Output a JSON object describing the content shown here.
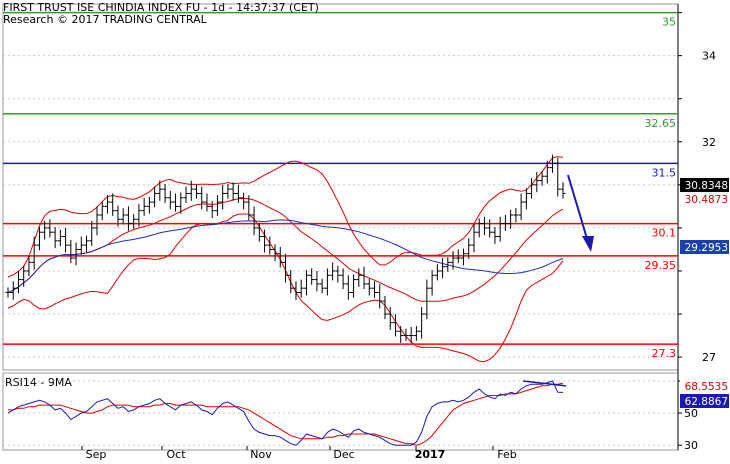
{
  "header": {
    "title": "FIRST TRUST ISE CHINDIA INDEX FU - 1d - 14:37:37 (CET)",
    "subtitle": "Research © 2017 TRADING CENTRAL"
  },
  "colors": {
    "price_bar": "#000000",
    "bollinger": "#e00000",
    "moving_average": "#1f2fb8",
    "resistance_line": "#2e9e2e",
    "support_line": "#ff0000",
    "pivot_line": "#1a1ab0",
    "current_price_tag": "#000000",
    "ma_tag": "#1a3fb0",
    "bollinger_tag": "#e00000",
    "rsi_line": "#1a1ab0",
    "rsi_ma_line": "#e00000",
    "arrow": "#1a1ab0",
    "grid": "#c8c8c8"
  },
  "chart_data": [
    {
      "type": "candlestick",
      "name": "price",
      "x_ticks": [
        "Sep",
        "Oct",
        "Nov",
        "Dec",
        "2017",
        "Feb"
      ],
      "y_ticks": [
        27,
        28,
        29,
        30,
        31,
        32,
        33,
        34,
        35
      ],
      "y_tick_labels_shown": [
        "27",
        "32",
        "34"
      ],
      "ylim": [
        26.7,
        35.2
      ],
      "grid": "dotted horizontal",
      "levels": [
        {
          "value": 35,
          "label": "35",
          "color": "green"
        },
        {
          "value": 32.65,
          "label": "32.65",
          "color": "green"
        },
        {
          "value": 31.5,
          "label": "31.5",
          "color": "blue"
        },
        {
          "value": 30.1,
          "label": "30.1",
          "color": "red"
        },
        {
          "value": 29.35,
          "label": "29.35",
          "color": "red"
        },
        {
          "value": 27.3,
          "label": "27.3",
          "color": "red"
        }
      ],
      "tags": [
        {
          "value": 30.8348,
          "label": "30.8348",
          "kind": "last price"
        },
        {
          "value": 30.4873,
          "label": "30.4873",
          "kind": "bollinger"
        },
        {
          "value": 29.2953,
          "label": "29.2953",
          "kind": "moving average"
        }
      ],
      "close": [
        28.5,
        28.6,
        28.8,
        29.0,
        29.2,
        29.6,
        29.9,
        30.0,
        29.9,
        29.7,
        29.8,
        29.6,
        29.3,
        29.5,
        29.6,
        29.7,
        30.0,
        30.3,
        30.5,
        30.6,
        30.4,
        30.2,
        30.3,
        30.1,
        30.2,
        30.4,
        30.5,
        30.6,
        30.8,
        30.9,
        30.7,
        30.6,
        30.5,
        30.7,
        30.8,
        30.9,
        30.8,
        30.6,
        30.5,
        30.4,
        30.6,
        30.8,
        30.9,
        30.8,
        30.7,
        30.6,
        30.3,
        30.0,
        29.8,
        29.6,
        29.5,
        29.4,
        29.2,
        28.9,
        28.6,
        28.5,
        28.6,
        28.9,
        28.8,
        28.7,
        28.6,
        28.9,
        29.0,
        28.9,
        28.7,
        28.5,
        28.8,
        28.9,
        28.7,
        28.6,
        28.5,
        28.3,
        28.0,
        27.8,
        27.6,
        27.5,
        27.5,
        27.5,
        27.6,
        28.0,
        28.6,
        28.9,
        29.0,
        29.1,
        29.2,
        29.3,
        29.3,
        29.4,
        29.6,
        29.9,
        30.1,
        30.0,
        29.9,
        29.8,
        30.1,
        30.1,
        30.3,
        30.3,
        30.6,
        30.8,
        31.0,
        31.1,
        31.2,
        31.4,
        31.5,
        30.9,
        30.8
      ]
    },
    {
      "type": "line",
      "name": "RSI14 - 9MA",
      "series": [
        {
          "name": "RSI14",
          "tag": "62.8867",
          "values": [
            50,
            52,
            54,
            55,
            56,
            57,
            58,
            57,
            55,
            52,
            53,
            50,
            46,
            48,
            50,
            51,
            54,
            57,
            58,
            59,
            56,
            53,
            54,
            51,
            52,
            54,
            55,
            56,
            58,
            59,
            56,
            54,
            52,
            55,
            56,
            57,
            55,
            52,
            51,
            49,
            53,
            56,
            57,
            55,
            53,
            51,
            45,
            40,
            38,
            37,
            36,
            36,
            35,
            33,
            31,
            30,
            33,
            37,
            36,
            35,
            34,
            38,
            40,
            39,
            37,
            35,
            39,
            40,
            38,
            37,
            36,
            35,
            33,
            31,
            30,
            30,
            30,
            30,
            32,
            38,
            48,
            54,
            56,
            57,
            57,
            58,
            57,
            58,
            60,
            63,
            65,
            62,
            60,
            59,
            62,
            61,
            63,
            62,
            65,
            67,
            68,
            68,
            68,
            69,
            70,
            63,
            62.9
          ]
        },
        {
          "name": "9MA",
          "tag": "68.5535",
          "values": [
            52,
            52,
            53,
            53,
            54,
            54,
            55,
            55,
            55,
            55,
            55,
            54,
            53,
            52,
            51,
            50,
            50,
            51,
            52,
            54,
            55,
            55,
            55,
            55,
            54,
            54,
            54,
            54,
            55,
            55,
            56,
            56,
            55,
            55,
            55,
            55,
            55,
            55,
            54,
            54,
            54,
            54,
            54,
            54,
            54,
            53,
            52,
            50,
            48,
            46,
            44,
            42,
            40,
            38,
            36,
            35,
            34,
            34,
            34,
            34,
            34,
            35,
            35,
            36,
            36,
            37,
            37,
            37,
            37,
            37,
            37,
            36,
            35,
            34,
            33,
            32,
            31,
            31,
            30,
            31,
            33,
            36,
            40,
            44,
            48,
            52,
            54,
            56,
            57,
            58,
            59,
            60,
            61,
            61,
            61,
            62,
            62,
            62,
            63,
            64,
            65,
            66,
            67,
            67,
            68,
            68,
            68.55
          ]
        }
      ],
      "y_ticks": [
        30,
        50,
        70
      ],
      "y_tick_labels_shown": [
        "30",
        "50"
      ],
      "ylim": [
        27,
        75
      ]
    }
  ]
}
